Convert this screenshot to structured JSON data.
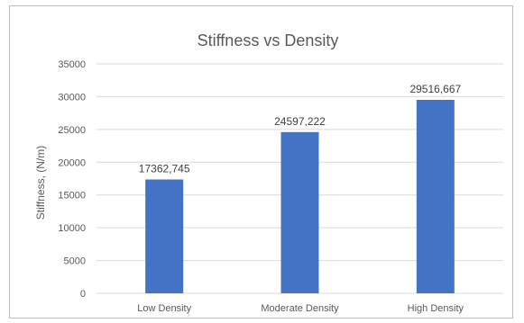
{
  "chart_data": {
    "type": "bar",
    "title": "Stiffness vs Density",
    "xlabel": "",
    "ylabel": "Stiffness, (N/m)",
    "categories": [
      "Low Density",
      "Moderate Density",
      "High Density"
    ],
    "values": [
      17362.745,
      24597.222,
      29516.667
    ],
    "data_labels": [
      "17362,745",
      "24597,222",
      "29516,667"
    ],
    "ylim": [
      0,
      35000
    ],
    "yticks": [
      0,
      5000,
      10000,
      15000,
      20000,
      25000,
      30000,
      35000
    ],
    "ytick_labels": [
      "0",
      "5000",
      "10000",
      "15000",
      "20000",
      "25000",
      "30000",
      "35000"
    ],
    "grid": true,
    "legend": "none",
    "bar_color": "#4472c4",
    "grid_color": "#d9d9d9"
  }
}
